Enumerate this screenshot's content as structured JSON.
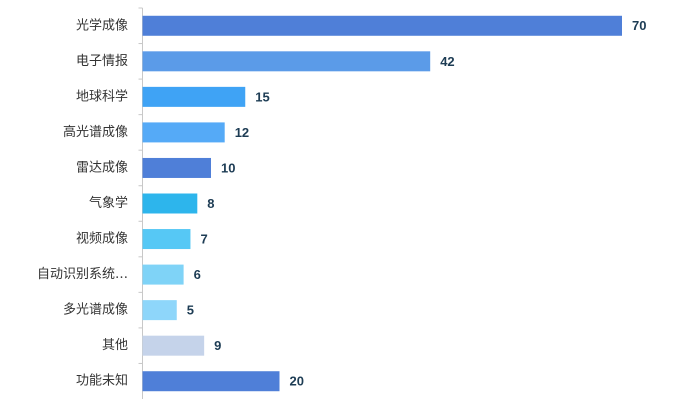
{
  "chart_data": {
    "type": "barh",
    "categories": [
      "光学成像",
      "电子情报",
      "地球科学",
      "高光谱成像",
      "雷达成像",
      "气象学",
      "视频成像",
      "自动识别系统…",
      "多光谱成像",
      "其他",
      "功能未知"
    ],
    "values": [
      70,
      42,
      15,
      12,
      10,
      8,
      7,
      6,
      5,
      9,
      20
    ],
    "colors": [
      "#4f7fd8",
      "#5b9be8",
      "#3fa3f5",
      "#55aaf7",
      "#4f7fd8",
      "#2db5ec",
      "#56c8f5",
      "#7fd3f7",
      "#8ed6fa",
      "#c5d3ea",
      "#4f7fd8"
    ]
  }
}
